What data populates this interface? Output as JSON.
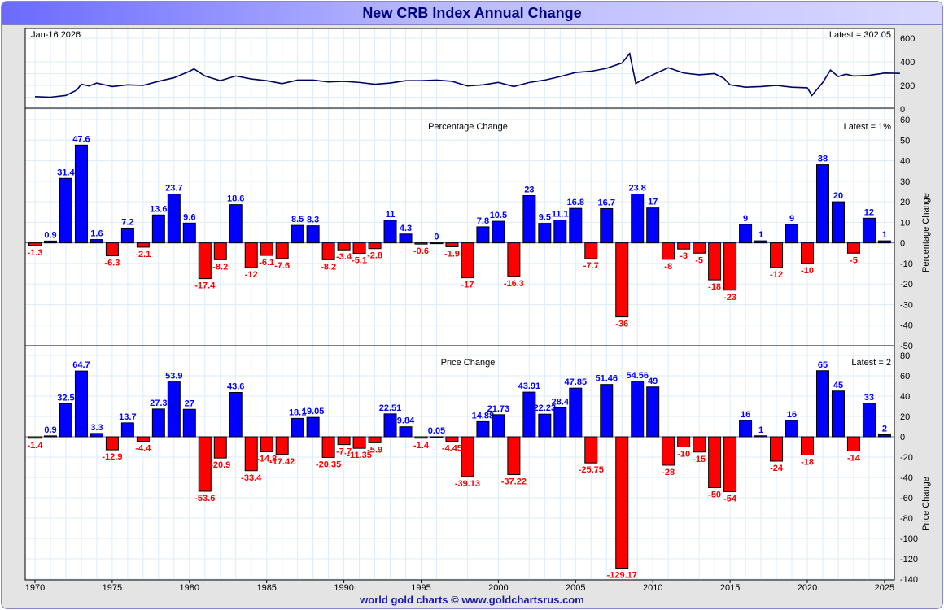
{
  "title": "New CRB Index Annual Change",
  "footer": "world gold charts © www.goldchartsrus.com",
  "colors": {
    "positive": "#0000ff",
    "negative": "#ff0000",
    "line": "#000066",
    "grid": "#dcecf8"
  },
  "chart_data": {
    "type": "bar",
    "years": [
      1970,
      1971,
      1972,
      1973,
      1974,
      1975,
      1976,
      1977,
      1978,
      1979,
      1980,
      1981,
      1982,
      1983,
      1984,
      1985,
      1986,
      1987,
      1988,
      1989,
      1990,
      1991,
      1992,
      1993,
      1994,
      1995,
      1996,
      1997,
      1998,
      1999,
      2000,
      2001,
      2002,
      2003,
      2004,
      2005,
      2006,
      2007,
      2008,
      2009,
      2010,
      2011,
      2012,
      2013,
      2014,
      2015,
      2016,
      2017,
      2018,
      2019,
      2020,
      2021,
      2022,
      2023,
      2024,
      2025
    ],
    "xticks": [
      "1970",
      "1975",
      "1980",
      "1985",
      "1990",
      "1995",
      "2000",
      "2005",
      "2010",
      "2015",
      "2020",
      "2025"
    ],
    "index_panel": {
      "date_label": "Jan-16  2026",
      "latest": "Latest = 302.05",
      "yticks": [
        "600",
        "400",
        "200",
        "0"
      ],
      "ylim": [
        0,
        650
      ],
      "x": [
        1970,
        1971,
        1972,
        1972.7,
        1973,
        1973.5,
        1974,
        1975,
        1976,
        1977,
        1978,
        1979,
        1980,
        1980.3,
        1981,
        1982,
        1983,
        1984,
        1985,
        1986,
        1987,
        1988,
        1989,
        1990,
        1991,
        1992,
        1993,
        1994,
        1995,
        1996,
        1997,
        1998,
        1999,
        2000,
        2001,
        2002,
        2003,
        2004,
        2005,
        2006,
        2007,
        2008,
        2008.5,
        2008.9,
        2009,
        2010,
        2011,
        2012,
        2013,
        2014,
        2014.6,
        2015,
        2016,
        2017,
        2018,
        2019,
        2020,
        2020.3,
        2021,
        2021.5,
        2022,
        2022.5,
        2023,
        2024,
        2025,
        2026
      ],
      "y": [
        105,
        100,
        115,
        160,
        210,
        195,
        220,
        190,
        205,
        200,
        235,
        265,
        320,
        340,
        280,
        240,
        280,
        255,
        240,
        215,
        245,
        245,
        230,
        235,
        225,
        210,
        220,
        240,
        240,
        245,
        235,
        195,
        205,
        225,
        190,
        225,
        245,
        275,
        310,
        320,
        345,
        390,
        470,
        215,
        225,
        290,
        350,
        305,
        290,
        300,
        260,
        205,
        185,
        190,
        200,
        185,
        180,
        115,
        225,
        330,
        275,
        295,
        280,
        285,
        305,
        302
      ]
    },
    "pct_panel": {
      "title": "Percentage Change",
      "latest": "Latest = 1%",
      "ylabel": "Percentage Change",
      "ylim": [
        -50,
        60
      ],
      "yticks": [
        "60",
        "50",
        "40",
        "30",
        "20",
        "10",
        "0",
        "-10",
        "-20",
        "-30",
        "-40",
        "-50"
      ],
      "values": [
        -1.3,
        0.9,
        31.4,
        47.6,
        1.6,
        -6.3,
        7.2,
        -2.1,
        13.6,
        23.7,
        9.6,
        -17.4,
        -8.2,
        18.6,
        -12,
        -6.1,
        -7.6,
        8.5,
        8.3,
        -8.2,
        -3.4,
        -5.1,
        -2.8,
        11,
        4.3,
        -0.6,
        0,
        -1.9,
        -17,
        7.8,
        10.5,
        -16.3,
        23,
        9.5,
        11.1,
        16.8,
        -7.7,
        16.7,
        -36,
        23.8,
        17,
        -8,
        -3,
        -5,
        -18,
        -23,
        9,
        1,
        -12,
        9,
        -10,
        38,
        20,
        -5,
        12,
        1
      ],
      "labels": [
        "-1.3",
        "0.9",
        "31.4",
        "47.6",
        "1.6",
        "-6.3",
        "7.2",
        "-2.1",
        "13.6",
        "23.7",
        "9.6",
        "-17.4",
        "-8.2",
        "18.6",
        "-12",
        "-6.1",
        "-7.6",
        "8.5",
        "8.3",
        "-8.2",
        "-3.4",
        "-5.1",
        "-2.8",
        "11",
        "4.3",
        "-0.6",
        "0",
        "-1.9",
        "-17",
        "7.8",
        "10.5",
        "-16.3",
        "23",
        "9.5",
        "11.1",
        "16.8",
        "-7.7",
        "16.7",
        "-36",
        "23.8",
        "17",
        "-8",
        "-3",
        "-5",
        "-18",
        "-23",
        "9",
        "1",
        "-12",
        "9",
        "-10",
        "38",
        "20",
        "-5",
        "12",
        "1"
      ]
    },
    "price_panel": {
      "title": "Price Change",
      "latest": "Latest = 2",
      "ylabel": "Price Change",
      "ylim": [
        -140,
        80
      ],
      "yticks": [
        "80",
        "60",
        "40",
        "20",
        "0",
        "-20",
        "-40",
        "-60",
        "-80",
        "-100",
        "-120",
        "-140"
      ],
      "values": [
        -1.4,
        0.9,
        32.5,
        64.7,
        3.3,
        -12.9,
        13.7,
        -4.4,
        27.3,
        53.9,
        27,
        -53.6,
        -20.9,
        43.6,
        -33.4,
        -14.8,
        -17.42,
        18.1,
        19.05,
        -20.35,
        -7.7,
        -11.35,
        -5.9,
        22.51,
        9.84,
        -1.4,
        0.05,
        -4.45,
        -39.13,
        14.88,
        21.73,
        -37.22,
        43.91,
        22.23,
        28.4,
        47.85,
        -25.75,
        51.46,
        -129.17,
        54.56,
        49,
        -28,
        -10,
        -15,
        -50,
        -54,
        16,
        1,
        -24,
        16,
        -18,
        65,
        45,
        -14,
        33,
        2
      ],
      "labels": [
        "-1.4",
        "0.9",
        "32.5",
        "64.7",
        "3.3",
        "-12.9",
        "13.7",
        "-4.4",
        "27.3",
        "53.9",
        "27",
        "-53.6",
        "-20.9",
        "43.6",
        "-33.4",
        "-14.8",
        "-17.42",
        "18.1",
        "19.05",
        "-20.35",
        "-7.7",
        "-11.35",
        "-5.9",
        "22.51",
        "9.84",
        "-1.4",
        "0.05",
        "-4.45",
        "-39.13",
        "14.88",
        "21.73",
        "-37.22",
        "43.91",
        "22.23",
        "28.4",
        "47.85",
        "-25.75",
        "51.46",
        "-129.17",
        "54.56",
        "49",
        "-28",
        "-10",
        "-15",
        "-50",
        "-54",
        "16",
        "1",
        "-24",
        "16",
        "-18",
        "65",
        "45",
        "-14",
        "33",
        "2"
      ]
    }
  }
}
